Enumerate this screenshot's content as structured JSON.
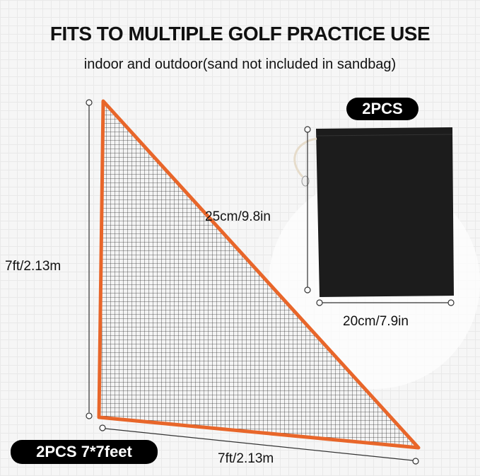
{
  "header": {
    "title": "FITS TO MULTIPLE GOLF PRACTICE USE",
    "subtitle": "indoor and outdoor(sand not included in sandbag)"
  },
  "net": {
    "height_label": "7ft/2.13m",
    "width_label": "7ft/2.13m",
    "badge": "2PCS 7*7feet",
    "border_color": "#e8662a"
  },
  "sandbag": {
    "badge": "2PCS",
    "height_label": "25cm/9.8in",
    "width_label": "20cm/7.9in",
    "color": "#1c1c1c"
  }
}
